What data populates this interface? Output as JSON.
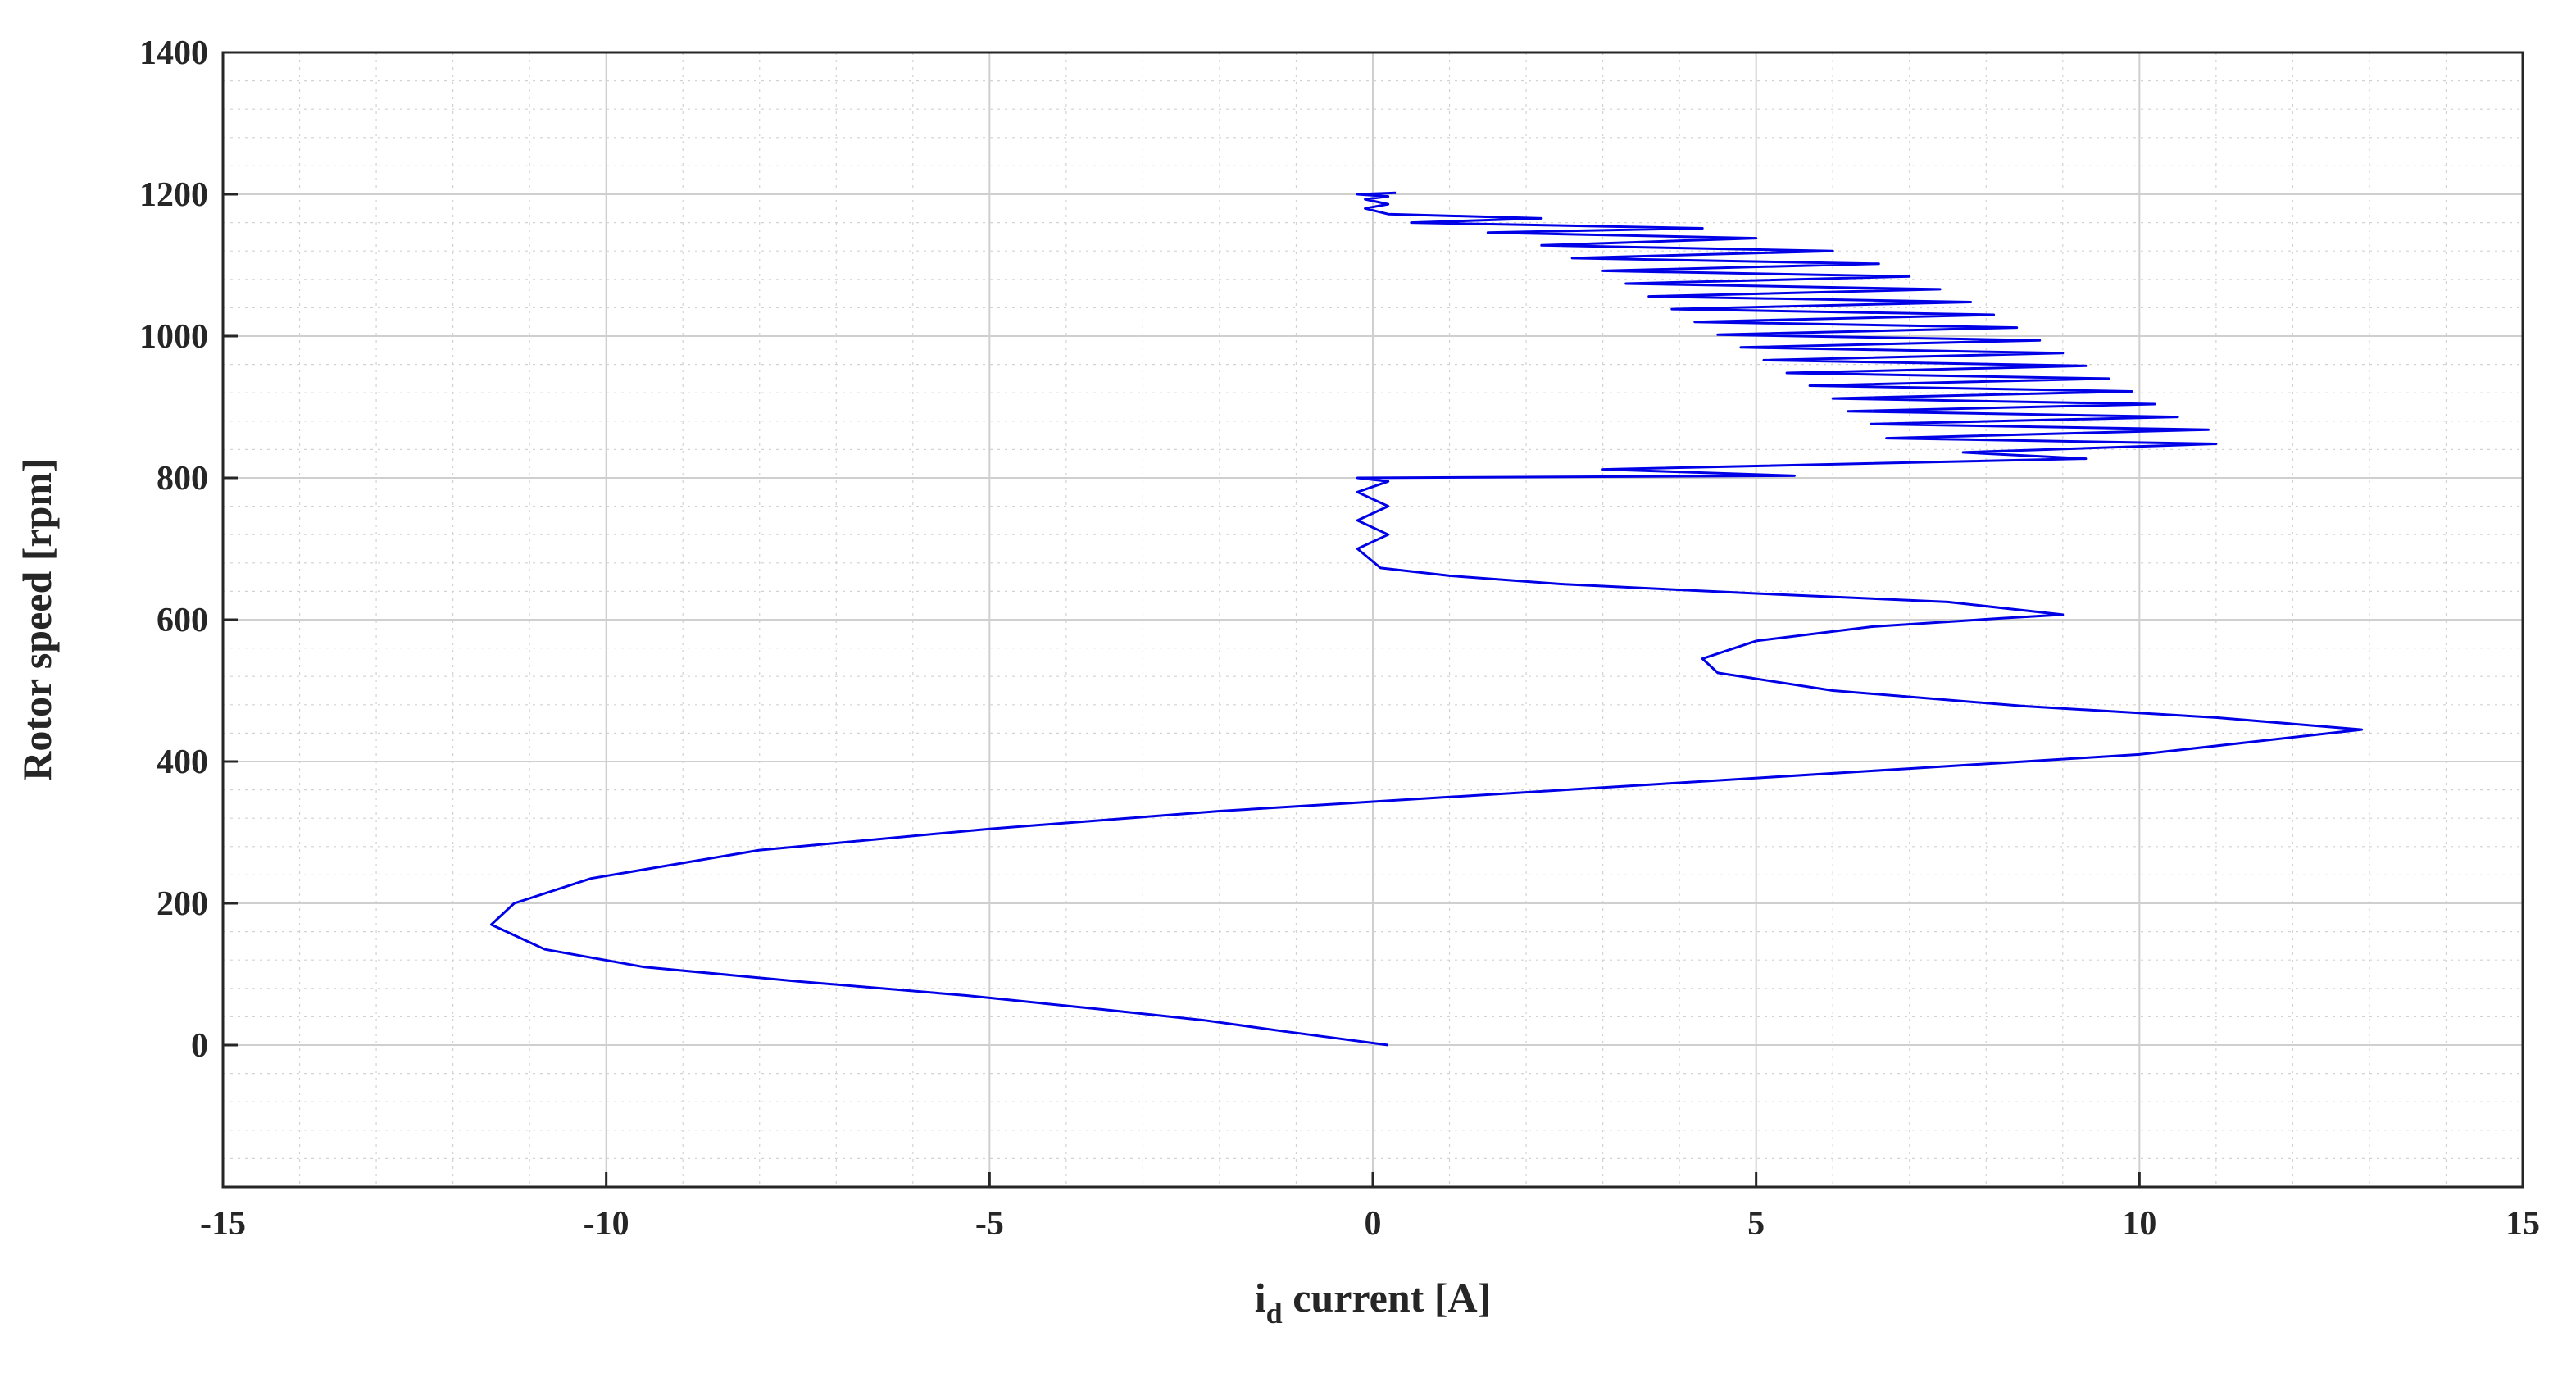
{
  "chart_data": {
    "type": "line",
    "xlabel": "i",
    "xlabel_sub": "d",
    "xlabel_rest": " current [A]",
    "ylabel": "Rotor speed [rpm]",
    "xlim": [
      -15,
      15
    ],
    "ylim": [
      -200,
      1400
    ],
    "x_ticks": [
      -15,
      -10,
      -5,
      0,
      5,
      10,
      15
    ],
    "y_ticks": [
      0,
      200,
      400,
      600,
      800,
      1000,
      1200,
      1400
    ],
    "x_tick_labels": [
      "-15",
      "-10",
      "-5",
      "0",
      "5",
      "10",
      "15"
    ],
    "y_tick_labels": [
      "0",
      "200",
      "400",
      "600",
      "800",
      "1000",
      "1200",
      "1400"
    ],
    "grid": true,
    "minor_grid": true,
    "line_color": "#0000e6",
    "series": [
      {
        "points": [
          [
            0.2,
            0
          ],
          [
            -0.5,
            10
          ],
          [
            -1.2,
            20
          ],
          [
            -2.2,
            35
          ],
          [
            -3.5,
            50
          ],
          [
            -5.3,
            70
          ],
          [
            -7.5,
            90
          ],
          [
            -9.5,
            110
          ],
          [
            -10.8,
            135
          ],
          [
            -11.5,
            170
          ],
          [
            -11.2,
            200
          ],
          [
            -10.2,
            235
          ],
          [
            -8.0,
            275
          ],
          [
            -5.0,
            305
          ],
          [
            -2.0,
            330
          ],
          [
            1.0,
            350
          ],
          [
            4.0,
            370
          ],
          [
            7.0,
            390
          ],
          [
            10.0,
            410
          ],
          [
            12.9,
            445
          ],
          [
            11.0,
            462
          ],
          [
            8.5,
            478
          ],
          [
            6.0,
            500
          ],
          [
            4.5,
            525
          ],
          [
            4.3,
            545
          ],
          [
            5.0,
            570
          ],
          [
            6.5,
            590
          ],
          [
            8.2,
            602
          ],
          [
            9.0,
            607
          ],
          [
            7.5,
            625
          ],
          [
            5.0,
            637
          ],
          [
            2.5,
            650
          ],
          [
            1.0,
            662
          ],
          [
            0.1,
            673
          ],
          [
            -0.2,
            700
          ],
          [
            0.2,
            720
          ],
          [
            -0.2,
            740
          ],
          [
            0.2,
            760
          ],
          [
            -0.2,
            780
          ],
          [
            0.2,
            795
          ],
          [
            -0.2,
            800
          ],
          [
            5.5,
            803
          ],
          [
            3.0,
            812
          ],
          [
            9.3,
            827
          ],
          [
            7.7,
            836
          ],
          [
            11.0,
            848
          ],
          [
            6.7,
            856
          ],
          [
            10.9,
            868
          ],
          [
            6.5,
            876
          ],
          [
            10.5,
            886
          ],
          [
            6.2,
            894
          ],
          [
            10.2,
            904
          ],
          [
            6.0,
            912
          ],
          [
            9.9,
            922
          ],
          [
            5.7,
            930
          ],
          [
            9.6,
            940
          ],
          [
            5.4,
            948
          ],
          [
            9.3,
            958
          ],
          [
            5.1,
            966
          ],
          [
            9.0,
            976
          ],
          [
            4.8,
            984
          ],
          [
            8.7,
            994
          ],
          [
            4.5,
            1002
          ],
          [
            8.4,
            1012
          ],
          [
            4.2,
            1020
          ],
          [
            8.1,
            1030
          ],
          [
            3.9,
            1038
          ],
          [
            7.8,
            1048
          ],
          [
            3.6,
            1056
          ],
          [
            7.4,
            1066
          ],
          [
            3.3,
            1074
          ],
          [
            7.0,
            1084
          ],
          [
            3.0,
            1092
          ],
          [
            6.6,
            1102
          ],
          [
            2.6,
            1110
          ],
          [
            6.0,
            1120
          ],
          [
            2.2,
            1128
          ],
          [
            5.0,
            1138
          ],
          [
            1.5,
            1146
          ],
          [
            4.3,
            1152
          ],
          [
            0.5,
            1160
          ],
          [
            2.2,
            1166
          ],
          [
            0.2,
            1172
          ],
          [
            -0.1,
            1180
          ],
          [
            0.2,
            1186
          ],
          [
            -0.1,
            1193
          ],
          [
            0.2,
            1197
          ],
          [
            -0.2,
            1200
          ],
          [
            0.3,
            1202
          ]
        ]
      }
    ]
  }
}
